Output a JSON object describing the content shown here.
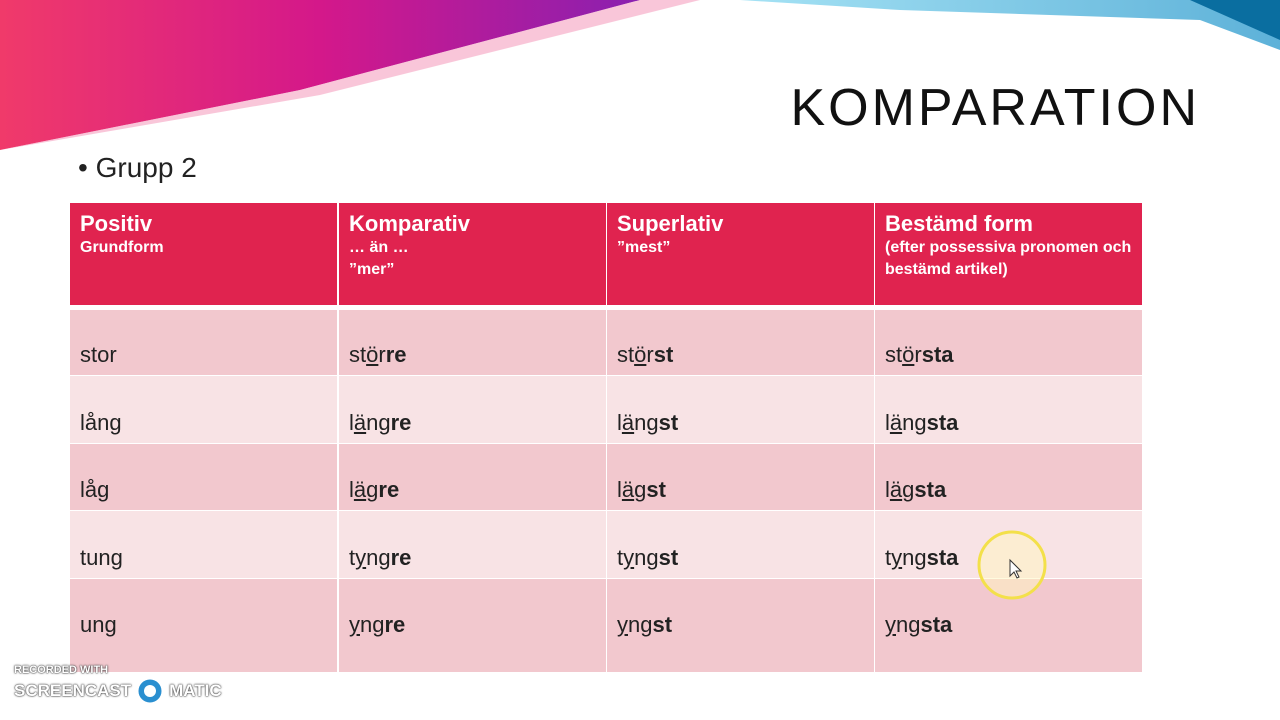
{
  "slide": {
    "title": "KOMPARATION",
    "bullet": "Grupp 2"
  },
  "table": {
    "header": [
      {
        "title": "Positiv",
        "sub": [
          "Grundform"
        ]
      },
      {
        "title": "Komparativ",
        "sub": [
          "… än …",
          "”mer”"
        ]
      },
      {
        "title": "Superlativ",
        "sub": [
          "”mest”"
        ]
      },
      {
        "title": "Bestämd form",
        "sub": [
          "(efter possessiva pronomen och bestämd artikel)"
        ]
      }
    ],
    "rows": [
      [
        [
          {
            "text": "stor"
          }
        ],
        [
          {
            "text": "st"
          },
          {
            "text": "ö",
            "underline": true
          },
          {
            "text": "r"
          },
          {
            "text": "re",
            "bold": true
          }
        ],
        [
          {
            "text": "st"
          },
          {
            "text": "ö",
            "underline": true
          },
          {
            "text": "r"
          },
          {
            "text": "st",
            "bold": true
          }
        ],
        [
          {
            "text": "st"
          },
          {
            "text": "ö",
            "underline": true
          },
          {
            "text": "r"
          },
          {
            "text": "sta",
            "bold": true
          }
        ]
      ],
      [
        [
          {
            "text": "lång"
          }
        ],
        [
          {
            "text": "l"
          },
          {
            "text": "ä",
            "underline": true
          },
          {
            "text": "ng"
          },
          {
            "text": "re",
            "bold": true
          }
        ],
        [
          {
            "text": "l"
          },
          {
            "text": "ä",
            "underline": true
          },
          {
            "text": "ng"
          },
          {
            "text": "st",
            "bold": true
          }
        ],
        [
          {
            "text": "l"
          },
          {
            "text": "ä",
            "underline": true
          },
          {
            "text": "ng"
          },
          {
            "text": "sta",
            "bold": true
          }
        ]
      ],
      [
        [
          {
            "text": "låg"
          }
        ],
        [
          {
            "text": "l"
          },
          {
            "text": "ä",
            "underline": true
          },
          {
            "text": "g"
          },
          {
            "text": "re",
            "bold": true
          }
        ],
        [
          {
            "text": "l"
          },
          {
            "text": "ä",
            "underline": true
          },
          {
            "text": "g"
          },
          {
            "text": "st",
            "bold": true
          }
        ],
        [
          {
            "text": "l"
          },
          {
            "text": "ä",
            "underline": true
          },
          {
            "text": "g"
          },
          {
            "text": "sta",
            "bold": true
          }
        ]
      ],
      [
        [
          {
            "text": "tung"
          }
        ],
        [
          {
            "text": "t"
          },
          {
            "text": "y",
            "underline": true
          },
          {
            "text": "ng"
          },
          {
            "text": "re",
            "bold": true
          }
        ],
        [
          {
            "text": "t"
          },
          {
            "text": "y",
            "underline": true
          },
          {
            "text": "ng"
          },
          {
            "text": "st",
            "bold": true
          }
        ],
        [
          {
            "text": "t"
          },
          {
            "text": "y",
            "underline": true
          },
          {
            "text": "ng"
          },
          {
            "text": "sta",
            "bold": true
          }
        ]
      ],
      [
        [
          {
            "text": "ung"
          }
        ],
        [
          {
            "text": "y",
            "underline": true
          },
          {
            "text": "ng"
          },
          {
            "text": "re",
            "bold": true
          }
        ],
        [
          {
            "text": "y",
            "underline": true
          },
          {
            "text": "ng"
          },
          {
            "text": "st",
            "bold": true
          }
        ],
        [
          {
            "text": "y",
            "underline": true
          },
          {
            "text": "ng"
          },
          {
            "text": "sta",
            "bold": true
          }
        ]
      ]
    ]
  },
  "watermark": {
    "line1": "RECORDED WITH",
    "left": "SCREENCAST",
    "right": "MATIC"
  }
}
